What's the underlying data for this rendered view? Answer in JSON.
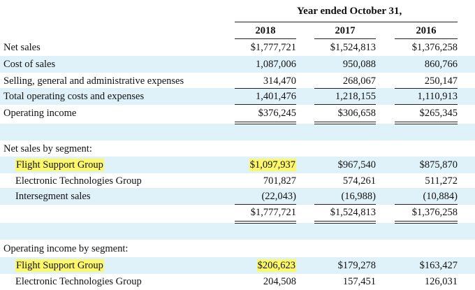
{
  "header": {
    "period_title": "Year ended October 31,",
    "years": [
      "2018",
      "2017",
      "2016"
    ]
  },
  "rows": [
    {
      "label": "Net sales",
      "values": [
        "$1,777,721",
        "$1,524,813",
        "$1,376,258"
      ]
    },
    {
      "label": "Cost of sales",
      "values": [
        "1,087,006",
        "950,088",
        "860,766"
      ]
    },
    {
      "label": "Selling, general and administrative expenses",
      "values": [
        "314,470",
        "268,067",
        "250,147"
      ]
    },
    {
      "label": "Total operating costs and expenses",
      "values": [
        "1,401,476",
        "1,218,155",
        "1,110,913"
      ]
    },
    {
      "label": "Operating income",
      "values": [
        "$376,245",
        "$306,658",
        "$265,345"
      ]
    },
    {
      "label": "Net sales by segment:"
    },
    {
      "label": "Flight Support Group",
      "values": [
        "$1,097,937",
        "$967,540",
        "$875,870"
      ]
    },
    {
      "label": "Electronic Technologies Group",
      "values": [
        "701,827",
        "574,261",
        "511,272"
      ]
    },
    {
      "label": "Intersegment sales",
      "values": [
        "(22,043)",
        "(16,988)",
        "(10,884)"
      ]
    },
    {
      "values": [
        "$1,777,721",
        "$1,524,813",
        "$1,376,258"
      ]
    },
    {
      "label": "Operating income by segment:"
    },
    {
      "label": "Flight Support Group",
      "values": [
        "$206,623",
        "$179,278",
        "$163,427"
      ]
    },
    {
      "label": "Electronic Technologies Group",
      "values": [
        "204,508",
        "157,451",
        "126,031"
      ]
    }
  ],
  "colors": {
    "row_shade": "#dff2fa",
    "highlight": "#fdf86b"
  }
}
